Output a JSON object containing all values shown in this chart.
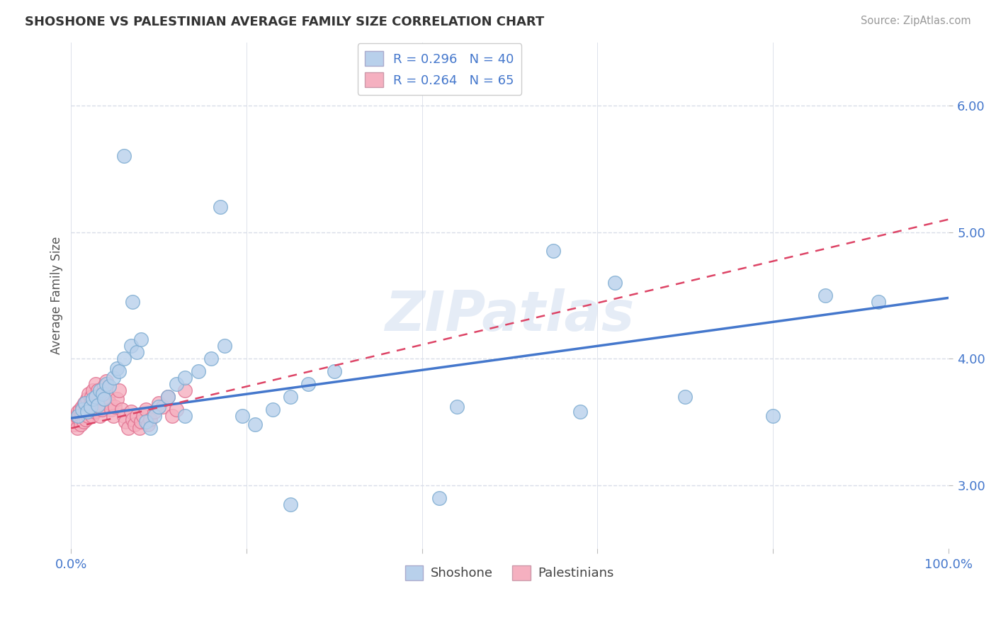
{
  "title": "SHOSHONE VS PALESTINIAN AVERAGE FAMILY SIZE CORRELATION CHART",
  "source": "Source: ZipAtlas.com",
  "ylabel": "Average Family Size",
  "xlim": [
    0,
    1.0
  ],
  "ylim": [
    2.5,
    6.5
  ],
  "xticks": [
    0.0,
    0.2,
    0.4,
    0.6,
    0.8,
    1.0
  ],
  "xticklabels": [
    "0.0%",
    "",
    "",
    "",
    "",
    "100.0%"
  ],
  "yticks": [
    3.0,
    4.0,
    5.0,
    6.0
  ],
  "yticklabels": [
    "3.00",
    "4.00",
    "5.00",
    "6.00"
  ],
  "shoshone_color": "#b8d0eb",
  "shoshone_edge": "#7aaad0",
  "palestinian_color": "#f5b0c0",
  "palestinian_edge": "#e07090",
  "shoshone_line_color": "#4477cc",
  "palestinian_line_color": "#dd4466",
  "background_color": "#ffffff",
  "grid_color": "#d8dde8",
  "legend_r1": "R = 0.296   N = 40",
  "legend_r2": "R = 0.264   N = 65",
  "watermark": "ZIPatlas",
  "shoshone_x": [
    0.008,
    0.013,
    0.016,
    0.018,
    0.022,
    0.025,
    0.028,
    0.03,
    0.033,
    0.036,
    0.038,
    0.04,
    0.043,
    0.048,
    0.052,
    0.055,
    0.06,
    0.068,
    0.075,
    0.08,
    0.085,
    0.09,
    0.095,
    0.1,
    0.11,
    0.12,
    0.13,
    0.145,
    0.16,
    0.175,
    0.195,
    0.21,
    0.23,
    0.25,
    0.27,
    0.3,
    0.44,
    0.58,
    0.7,
    0.92
  ],
  "shoshone_y": [
    3.55,
    3.6,
    3.65,
    3.58,
    3.62,
    3.68,
    3.7,
    3.63,
    3.75,
    3.72,
    3.68,
    3.8,
    3.78,
    3.85,
    3.92,
    3.9,
    4.0,
    4.1,
    4.05,
    4.15,
    3.5,
    3.45,
    3.55,
    3.62,
    3.7,
    3.8,
    3.85,
    3.9,
    4.0,
    4.1,
    3.55,
    3.48,
    3.6,
    3.7,
    3.8,
    3.9,
    3.62,
    3.58,
    3.7,
    4.45
  ],
  "shoshone_outliers_x": [
    0.06,
    0.17,
    0.55,
    0.62,
    0.8,
    0.86,
    0.07,
    0.13,
    0.25,
    0.42
  ],
  "shoshone_outliers_y": [
    5.6,
    5.2,
    4.85,
    4.6,
    3.55,
    4.5,
    4.45,
    3.55,
    2.85,
    2.9
  ],
  "palestinian_x": [
    0.002,
    0.004,
    0.005,
    0.006,
    0.007,
    0.008,
    0.009,
    0.01,
    0.011,
    0.012,
    0.013,
    0.014,
    0.015,
    0.016,
    0.017,
    0.018,
    0.019,
    0.02,
    0.021,
    0.022,
    0.023,
    0.024,
    0.025,
    0.026,
    0.027,
    0.028,
    0.029,
    0.03,
    0.031,
    0.032,
    0.033,
    0.034,
    0.035,
    0.036,
    0.037,
    0.038,
    0.04,
    0.042,
    0.044,
    0.046,
    0.048,
    0.05,
    0.052,
    0.055,
    0.058,
    0.06,
    0.062,
    0.065,
    0.068,
    0.07,
    0.072,
    0.075,
    0.078,
    0.08,
    0.082,
    0.085,
    0.088,
    0.09,
    0.095,
    0.1,
    0.105,
    0.11,
    0.115,
    0.12,
    0.13
  ],
  "palestinian_y": [
    3.52,
    3.48,
    3.5,
    3.55,
    3.45,
    3.58,
    3.53,
    3.6,
    3.48,
    3.55,
    3.62,
    3.5,
    3.65,
    3.58,
    3.52,
    3.68,
    3.55,
    3.72,
    3.6,
    3.65,
    3.7,
    3.55,
    3.75,
    3.62,
    3.58,
    3.8,
    3.65,
    3.75,
    3.6,
    3.7,
    3.55,
    3.65,
    3.6,
    3.72,
    3.68,
    3.78,
    3.82,
    3.7,
    3.65,
    3.6,
    3.55,
    3.62,
    3.68,
    3.75,
    3.6,
    3.55,
    3.5,
    3.45,
    3.58,
    3.52,
    3.48,
    3.55,
    3.45,
    3.5,
    3.55,
    3.6,
    3.48,
    3.52,
    3.58,
    3.65,
    3.62,
    3.7,
    3.55,
    3.6,
    3.75
  ]
}
